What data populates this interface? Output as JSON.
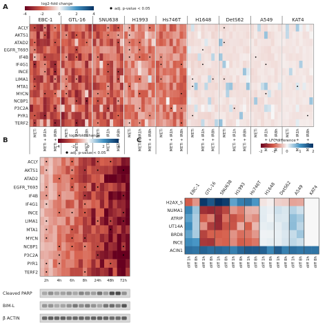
{
  "panelA": {
    "letter": "A",
    "legend_title": "log2-fold change",
    "legend_ticks": [
      "-4",
      "-2",
      "0",
      "2",
      "4"
    ],
    "sig_label": "adj. p-value < 0.05",
    "genes": [
      "ACLY",
      "AKTS1",
      "ATAD2",
      "EGFR_T693",
      "IF4B",
      "IF4G1",
      "INCE",
      "LIMA1",
      "MTA1",
      "MYCN",
      "NCBP1",
      "P3C2A",
      "PYR1",
      "TERF2"
    ],
    "cell_lines": [
      "EBC-1",
      "GTL-16",
      "SNU638",
      "H1993",
      "Hs746T",
      "H1648",
      "DetS62",
      "A549",
      "KAT4"
    ],
    "conditions": [
      "METi",
      "METi + IR1h",
      "METi + IR8h"
    ]
  },
  "panelB": {
    "letter": "B",
    "legend_title": "log2-fold change",
    "legend_ticks": [
      "-4",
      "-2",
      "0",
      "2",
      "4"
    ],
    "sig_label": "adj. p-value < 0.05",
    "genes": [
      "ACLY",
      "AKTS1",
      "ATAD2",
      "EGFR_T693",
      "IF4B",
      "IF4G1",
      "INCE",
      "LIMA1",
      "MTA1",
      "MYCN",
      "NCBP1",
      "P3C2A",
      "PYR1",
      "TERF2"
    ],
    "timepoints": [
      "2h",
      "4h",
      "6h",
      "8h",
      "24h",
      "48h",
      "72h"
    ],
    "blots": [
      "Cleaved PARP",
      "BIM-L",
      "β ACTIN"
    ]
  },
  "panelC": {
    "letter": "C",
    "legend_title": "LFC difference",
    "legend_ticks": [
      "-2",
      "-1",
      "0",
      "1",
      "2"
    ],
    "genes": [
      "H2AX_S",
      "NUMA1",
      "ATRIP",
      "UT14A",
      "BRD8",
      "INCE",
      "ACIN1"
    ],
    "cell_lines": [
      "EBC-1",
      "GTL-16",
      "SNU638",
      "H1993",
      "Hs746T",
      "H1648",
      "DetS62",
      "A549",
      "KAT4"
    ],
    "conditions": [
      "diff 1h",
      "diff 8h"
    ]
  },
  "colors": {
    "neg_strong": "#67001f",
    "neg": "#d6604d",
    "neutral": "#f7f7f7",
    "pos": "#4393c3",
    "pos_strong": "#053061",
    "sig_dot": "#000000"
  }
}
